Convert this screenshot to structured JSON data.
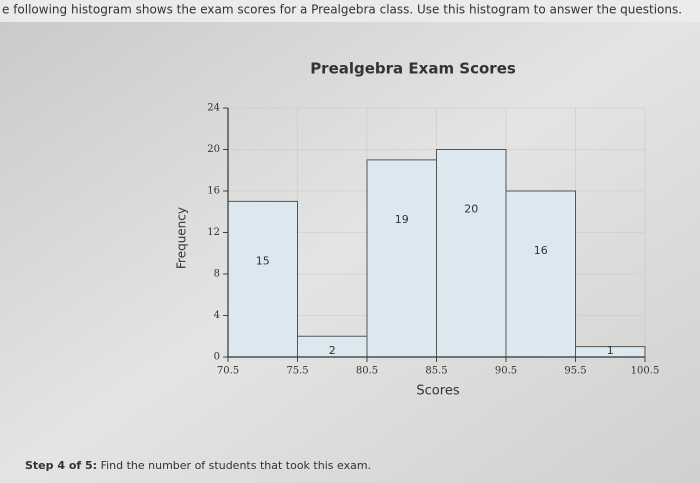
{
  "header": {
    "text": "e following histogram shows the exam scores for a Prealgebra class. Use this histogram to answer the questions."
  },
  "chart_data": {
    "type": "histogram",
    "title": "Prealgebra Exam Scores",
    "x_label": "Scores",
    "y_label": "Frequency",
    "bins": [
      70.5,
      75.5,
      80.5,
      85.5,
      90.5,
      95.5,
      100.5
    ],
    "values": [
      15,
      2,
      19,
      20,
      16,
      1
    ],
    "color": "#dce8ef",
    "xlim": [
      70.5,
      100.5
    ],
    "xticks": [
      70.5,
      75.5,
      80.5,
      85.5,
      90.5,
      95.5,
      100.5
    ],
    "ylim": [
      0,
      24
    ],
    "yticks": [
      0,
      4,
      8,
      12,
      16,
      20,
      24
    ],
    "grid": true
  },
  "footer": {
    "step": "Step 4 of 5:",
    "text": "Find the number of students that took this exam."
  }
}
